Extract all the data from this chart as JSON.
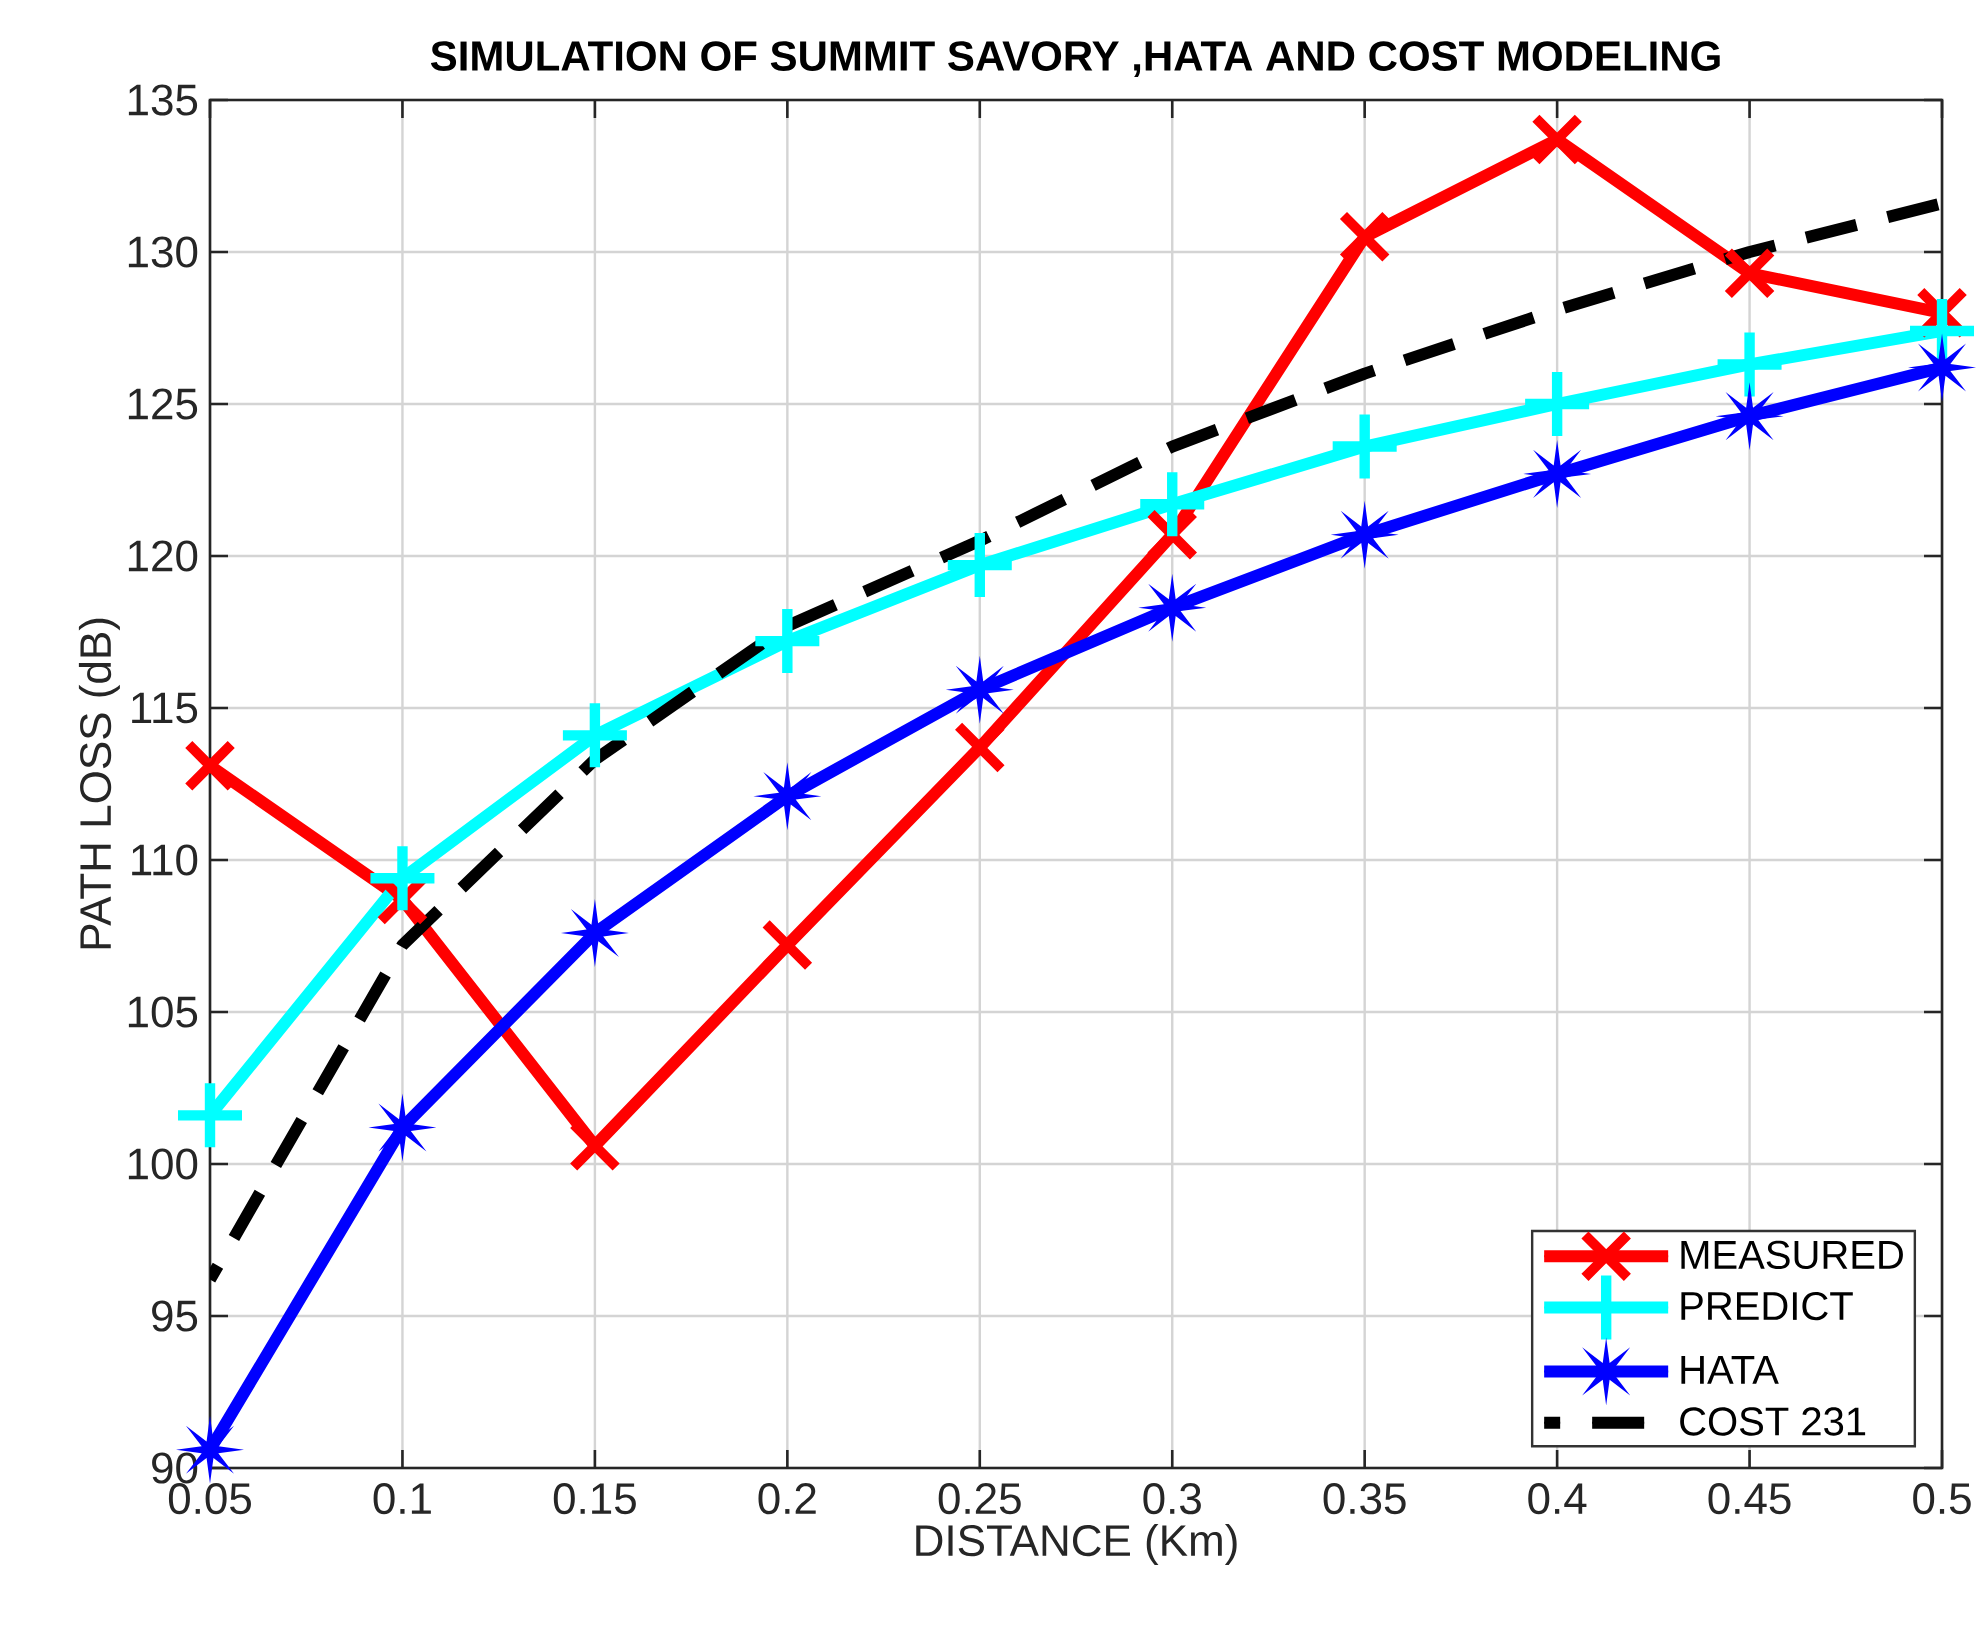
{
  "chart_data": {
    "type": "line",
    "title": "SIMULATION OF SUMMIT SAVORY ,HATA AND COST MODELING",
    "xlabel": "DISTANCE (Km)",
    "ylabel": "PATH LOSS (dB)",
    "x": [
      0.05,
      0.1,
      0.15,
      0.2,
      0.25,
      0.3,
      0.35,
      0.4,
      0.45,
      0.5
    ],
    "series": [
      {
        "name": "MEASURED",
        "color": "#ff0000",
        "marker": "cross",
        "line_style": "solid",
        "values": [
          113.1,
          108.7,
          100.6,
          107.2,
          113.7,
          120.7,
          130.5,
          133.7,
          129.3,
          128.0
        ]
      },
      {
        "name": "PREDICT",
        "color": "#00ffff",
        "marker": "cross",
        "line_style": "solid",
        "values": [
          101.6,
          109.4,
          114.1,
          117.2,
          119.7,
          121.7,
          123.6,
          125.0,
          126.3,
          127.4
        ]
      },
      {
        "name": "HATA",
        "color": "#0000ff",
        "marker": "star",
        "line_style": "solid",
        "values": [
          90.6,
          101.2,
          107.6,
          112.1,
          115.6,
          118.3,
          120.7,
          122.7,
          124.6,
          126.2
        ]
      },
      {
        "name": "COST 231",
        "color": "#000000",
        "marker": "none",
        "line_style": "dashed",
        "values": [
          96.2,
          107.2,
          113.3,
          117.7,
          120.5,
          123.6,
          126.0,
          128.1,
          130.0,
          131.6
        ]
      }
    ],
    "xlim": [
      0.05,
      0.5
    ],
    "ylim": [
      90,
      135
    ],
    "xticks": [
      0.05,
      0.1,
      0.15,
      0.2,
      0.25,
      0.3,
      0.35,
      0.4,
      0.45,
      0.5
    ],
    "yticks": [
      90,
      95,
      100,
      105,
      110,
      115,
      120,
      125,
      130,
      135
    ],
    "grid": true,
    "legend": "bottom right"
  }
}
